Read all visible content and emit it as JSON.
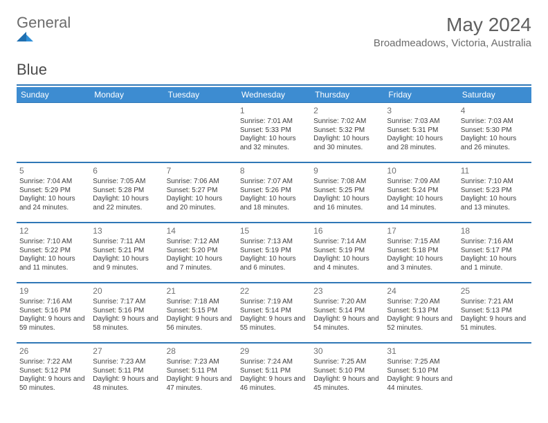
{
  "brand": {
    "part1": "General",
    "part2": "Blue"
  },
  "title": "May 2024",
  "location": "Broadmeadows, Victoria, Australia",
  "colors": {
    "header_band": "#3d8cd1",
    "rule": "#2f77b6",
    "text": "#333333",
    "muted": "#6b6b6b"
  },
  "weekdays": [
    "Sunday",
    "Monday",
    "Tuesday",
    "Wednesday",
    "Thursday",
    "Friday",
    "Saturday"
  ],
  "weeks": [
    [
      null,
      null,
      null,
      {
        "n": "1",
        "sr": "7:01 AM",
        "ss": "5:33 PM",
        "dl": "10 hours and 32 minutes."
      },
      {
        "n": "2",
        "sr": "7:02 AM",
        "ss": "5:32 PM",
        "dl": "10 hours and 30 minutes."
      },
      {
        "n": "3",
        "sr": "7:03 AM",
        "ss": "5:31 PM",
        "dl": "10 hours and 28 minutes."
      },
      {
        "n": "4",
        "sr": "7:03 AM",
        "ss": "5:30 PM",
        "dl": "10 hours and 26 minutes."
      }
    ],
    [
      {
        "n": "5",
        "sr": "7:04 AM",
        "ss": "5:29 PM",
        "dl": "10 hours and 24 minutes."
      },
      {
        "n": "6",
        "sr": "7:05 AM",
        "ss": "5:28 PM",
        "dl": "10 hours and 22 minutes."
      },
      {
        "n": "7",
        "sr": "7:06 AM",
        "ss": "5:27 PM",
        "dl": "10 hours and 20 minutes."
      },
      {
        "n": "8",
        "sr": "7:07 AM",
        "ss": "5:26 PM",
        "dl": "10 hours and 18 minutes."
      },
      {
        "n": "9",
        "sr": "7:08 AM",
        "ss": "5:25 PM",
        "dl": "10 hours and 16 minutes."
      },
      {
        "n": "10",
        "sr": "7:09 AM",
        "ss": "5:24 PM",
        "dl": "10 hours and 14 minutes."
      },
      {
        "n": "11",
        "sr": "7:10 AM",
        "ss": "5:23 PM",
        "dl": "10 hours and 13 minutes."
      }
    ],
    [
      {
        "n": "12",
        "sr": "7:10 AM",
        "ss": "5:22 PM",
        "dl": "10 hours and 11 minutes."
      },
      {
        "n": "13",
        "sr": "7:11 AM",
        "ss": "5:21 PM",
        "dl": "10 hours and 9 minutes."
      },
      {
        "n": "14",
        "sr": "7:12 AM",
        "ss": "5:20 PM",
        "dl": "10 hours and 7 minutes."
      },
      {
        "n": "15",
        "sr": "7:13 AM",
        "ss": "5:19 PM",
        "dl": "10 hours and 6 minutes."
      },
      {
        "n": "16",
        "sr": "7:14 AM",
        "ss": "5:19 PM",
        "dl": "10 hours and 4 minutes."
      },
      {
        "n": "17",
        "sr": "7:15 AM",
        "ss": "5:18 PM",
        "dl": "10 hours and 3 minutes."
      },
      {
        "n": "18",
        "sr": "7:16 AM",
        "ss": "5:17 PM",
        "dl": "10 hours and 1 minute."
      }
    ],
    [
      {
        "n": "19",
        "sr": "7:16 AM",
        "ss": "5:16 PM",
        "dl": "9 hours and 59 minutes."
      },
      {
        "n": "20",
        "sr": "7:17 AM",
        "ss": "5:16 PM",
        "dl": "9 hours and 58 minutes."
      },
      {
        "n": "21",
        "sr": "7:18 AM",
        "ss": "5:15 PM",
        "dl": "9 hours and 56 minutes."
      },
      {
        "n": "22",
        "sr": "7:19 AM",
        "ss": "5:14 PM",
        "dl": "9 hours and 55 minutes."
      },
      {
        "n": "23",
        "sr": "7:20 AM",
        "ss": "5:14 PM",
        "dl": "9 hours and 54 minutes."
      },
      {
        "n": "24",
        "sr": "7:20 AM",
        "ss": "5:13 PM",
        "dl": "9 hours and 52 minutes."
      },
      {
        "n": "25",
        "sr": "7:21 AM",
        "ss": "5:13 PM",
        "dl": "9 hours and 51 minutes."
      }
    ],
    [
      {
        "n": "26",
        "sr": "7:22 AM",
        "ss": "5:12 PM",
        "dl": "9 hours and 50 minutes."
      },
      {
        "n": "27",
        "sr": "7:23 AM",
        "ss": "5:11 PM",
        "dl": "9 hours and 48 minutes."
      },
      {
        "n": "28",
        "sr": "7:23 AM",
        "ss": "5:11 PM",
        "dl": "9 hours and 47 minutes."
      },
      {
        "n": "29",
        "sr": "7:24 AM",
        "ss": "5:11 PM",
        "dl": "9 hours and 46 minutes."
      },
      {
        "n": "30",
        "sr": "7:25 AM",
        "ss": "5:10 PM",
        "dl": "9 hours and 45 minutes."
      },
      {
        "n": "31",
        "sr": "7:25 AM",
        "ss": "5:10 PM",
        "dl": "9 hours and 44 minutes."
      },
      null
    ]
  ],
  "labels": {
    "sunrise": "Sunrise:",
    "sunset": "Sunset:",
    "daylight": "Daylight:"
  }
}
